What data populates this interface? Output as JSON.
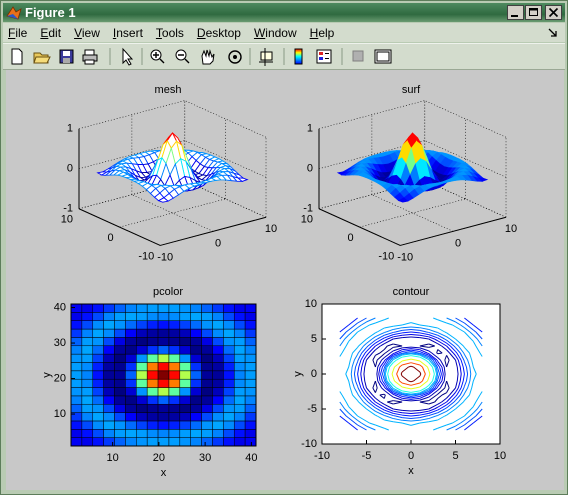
{
  "window": {
    "title": "Figure 1",
    "menus": [
      "File",
      "Edit",
      "View",
      "Insert",
      "Tools",
      "Desktop",
      "Window",
      "Help"
    ]
  },
  "chart_data": [
    {
      "type": "mesh",
      "title": "mesh",
      "x": [
        -8,
        -7,
        -6,
        -5,
        -4,
        -3,
        -2,
        -1,
        0,
        1,
        2,
        3,
        4,
        5,
        6,
        7,
        8
      ],
      "y": [
        -8,
        -7,
        -6,
        -5,
        -4,
        -3,
        -2,
        -1,
        0,
        1,
        2,
        3,
        4,
        5,
        6,
        7,
        8
      ],
      "z": [
        [
          -0.08,
          -0.09,
          -0.05,
          0,
          0.05,
          0.09,
          0.11,
          0.12,
          0.12,
          0.12,
          0.11,
          0.09,
          0.05,
          0,
          -0.05,
          -0.09,
          -0.08
        ],
        [
          -0.09,
          -0.05,
          0.02,
          0.09,
          0.12,
          0.13,
          0.12,
          0.1,
          0.09,
          0.1,
          0.12,
          0.13,
          0.12,
          0.09,
          0.02,
          -0.05,
          -0.09
        ],
        [
          -0.05,
          0.02,
          0.1,
          0.13,
          0.11,
          0.06,
          0.01,
          -0.03,
          -0.05,
          -0.03,
          0.01,
          0.06,
          0.11,
          0.13,
          0.1,
          0.02,
          -0.05
        ],
        [
          0,
          0.09,
          0.13,
          0.1,
          0.02,
          -0.07,
          -0.15,
          -0.18,
          -0.19,
          -0.18,
          -0.15,
          -0.07,
          0.02,
          0.1,
          0.13,
          0.09,
          0
        ],
        [
          0.05,
          0.12,
          0.11,
          0.02,
          -0.1,
          -0.19,
          -0.22,
          -0.2,
          -0.19,
          -0.2,
          -0.22,
          -0.19,
          -0.1,
          0.02,
          0.11,
          0.12,
          0.05
        ],
        [
          0.09,
          0.13,
          0.06,
          -0.07,
          -0.19,
          -0.21,
          -0.12,
          -0.01,
          0.05,
          -0.01,
          -0.12,
          -0.21,
          -0.19,
          -0.07,
          0.06,
          0.13,
          0.09
        ],
        [
          0.11,
          0.12,
          0.01,
          -0.15,
          -0.22,
          -0.12,
          0.11,
          0.35,
          0.45,
          0.35,
          0.11,
          -0.12,
          -0.22,
          -0.15,
          0.01,
          0.12,
          0.11
        ],
        [
          0.12,
          0.1,
          -0.03,
          -0.18,
          -0.2,
          -0.01,
          0.35,
          0.7,
          0.84,
          0.7,
          0.35,
          -0.01,
          -0.2,
          -0.18,
          -0.03,
          0.1,
          0.12
        ],
        [
          0.12,
          0.09,
          -0.05,
          -0.19,
          -0.19,
          0.05,
          0.45,
          0.84,
          1,
          0.84,
          0.45,
          0.05,
          -0.19,
          -0.19,
          -0.05,
          0.09,
          0.12
        ],
        [
          0.12,
          0.1,
          -0.03,
          -0.18,
          -0.2,
          -0.01,
          0.35,
          0.7,
          0.84,
          0.7,
          0.35,
          -0.01,
          -0.2,
          -0.18,
          -0.03,
          0.1,
          0.12
        ],
        [
          0.11,
          0.12,
          0.01,
          -0.15,
          -0.22,
          -0.12,
          0.11,
          0.35,
          0.45,
          0.35,
          0.11,
          -0.12,
          -0.22,
          -0.15,
          0.01,
          0.12,
          0.11
        ],
        [
          0.09,
          0.13,
          0.06,
          -0.07,
          -0.19,
          -0.21,
          -0.12,
          -0.01,
          0.05,
          -0.01,
          -0.12,
          -0.21,
          -0.19,
          -0.07,
          0.06,
          0.13,
          0.09
        ],
        [
          0.05,
          0.12,
          0.11,
          0.02,
          -0.1,
          -0.19,
          -0.22,
          -0.2,
          -0.19,
          -0.2,
          -0.22,
          -0.19,
          -0.1,
          0.02,
          0.11,
          0.12,
          0.05
        ],
        [
          0,
          0.09,
          0.13,
          0.1,
          0.02,
          -0.07,
          -0.15,
          -0.18,
          -0.19,
          -0.18,
          -0.15,
          -0.07,
          0.02,
          0.1,
          0.13,
          0.09,
          0
        ],
        [
          -0.05,
          0.02,
          0.1,
          0.13,
          0.11,
          0.06,
          0.01,
          -0.03,
          -0.05,
          -0.03,
          0.01,
          0.06,
          0.11,
          0.13,
          0.1,
          0.02,
          -0.05
        ],
        [
          -0.09,
          -0.05,
          0.02,
          0.09,
          0.12,
          0.13,
          0.12,
          0.1,
          0.09,
          0.1,
          0.12,
          0.13,
          0.12,
          0.09,
          0.02,
          -0.05,
          -0.09
        ],
        [
          -0.08,
          -0.09,
          -0.05,
          0,
          0.05,
          0.09,
          0.11,
          0.12,
          0.12,
          0.12,
          0.11,
          0.09,
          0.05,
          0,
          -0.05,
          -0.09,
          -0.08
        ]
      ],
      "xlim": [
        -10,
        10
      ],
      "ylim": [
        -10,
        10
      ],
      "zlim": [
        -1,
        1
      ],
      "xticks": [
        -10,
        0,
        10
      ],
      "yticks": [
        -10,
        0,
        10
      ],
      "zticks": [
        -1,
        0,
        1
      ],
      "colormap": "jet",
      "grid": true
    },
    {
      "type": "surf",
      "title": "surf",
      "xlim": [
        -10,
        10
      ],
      "ylim": [
        -10,
        10
      ],
      "zlim": [
        -1,
        1
      ],
      "xticks": [
        -10,
        0,
        10
      ],
      "yticks": [
        -10,
        0,
        10
      ],
      "zticks": [
        -1,
        0,
        1
      ],
      "colormap": "jet",
      "grid": true
    },
    {
      "type": "pcolor",
      "title": "pcolor",
      "xlabel": "x",
      "ylabel": "y",
      "xlim": [
        1,
        41
      ],
      "ylim": [
        1,
        41
      ],
      "xticks": [
        10,
        20,
        30,
        40
      ],
      "yticks": [
        10,
        20,
        30,
        40
      ],
      "colormap": "jet"
    },
    {
      "type": "contour",
      "title": "contour",
      "xlabel": "x",
      "ylabel": "y",
      "xlim": [
        -10,
        10
      ],
      "ylim": [
        -10,
        10
      ],
      "xticks": [
        -10,
        -5,
        0,
        5,
        10
      ],
      "yticks": [
        -10,
        -5,
        0,
        5,
        10
      ],
      "levels": [
        -0.2,
        -0.15,
        -0.1,
        -0.05,
        0,
        0.05,
        0.1,
        0.2,
        0.4,
        0.6,
        0.8
      ],
      "colormap": "jet"
    }
  ]
}
